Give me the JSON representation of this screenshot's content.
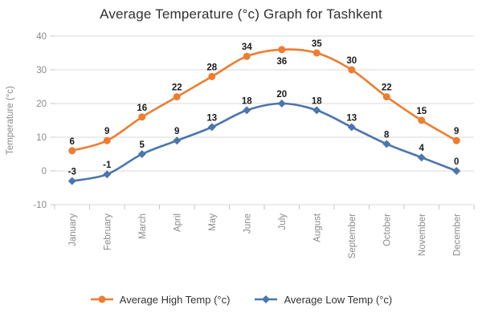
{
  "chart_data": {
    "type": "line",
    "title": "Average Temperature (°c) Graph for Tashkent",
    "ylabel": "Temperature (°c)",
    "categories": [
      "January",
      "February",
      "March",
      "April",
      "May",
      "June",
      "July",
      "August",
      "September",
      "October",
      "November",
      "December"
    ],
    "series": [
      {
        "name": "Average High Temp (°c)",
        "color": "#ED7D31",
        "marker": "circle",
        "values": [
          6,
          9,
          16,
          22,
          28,
          34,
          36,
          35,
          30,
          22,
          15,
          9
        ],
        "label_below_indices": [
          6
        ]
      },
      {
        "name": "Average Low Temp (°c)",
        "color": "#4B75AC",
        "marker": "diamond",
        "values": [
          -3,
          -1,
          5,
          9,
          13,
          18,
          20,
          18,
          13,
          8,
          4,
          0
        ],
        "label_below_indices": []
      }
    ],
    "ylim": [
      -10,
      40
    ],
    "ytick_step": 10,
    "grid": true,
    "legend_position": "bottom",
    "data_labels": true
  },
  "styles": {
    "grid_color": "#D9D9D9",
    "tick_color": "#C6C6C6",
    "axis_label_color": "#8A8A8A",
    "title_color": "#303030",
    "data_label_color": "#1A1A1A",
    "legend_text_color": "#333333",
    "background": "#FFFFFF"
  }
}
